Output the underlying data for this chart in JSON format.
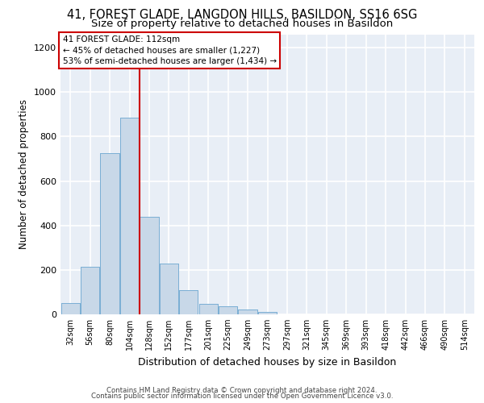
{
  "title1": "41, FOREST GLADE, LANGDON HILLS, BASILDON, SS16 6SG",
  "title2": "Size of property relative to detached houses in Basildon",
  "xlabel": "Distribution of detached houses by size in Basildon",
  "ylabel": "Number of detached properties",
  "footer1": "Contains HM Land Registry data © Crown copyright and database right 2024.",
  "footer2": "Contains public sector information licensed under the Open Government Licence v3.0.",
  "categories": [
    "32sqm",
    "56sqm",
    "80sqm",
    "104sqm",
    "128sqm",
    "152sqm",
    "177sqm",
    "201sqm",
    "225sqm",
    "249sqm",
    "273sqm",
    "297sqm",
    "321sqm",
    "345sqm",
    "369sqm",
    "393sqm",
    "418sqm",
    "442sqm",
    "466sqm",
    "490sqm",
    "514sqm"
  ],
  "values": [
    50,
    215,
    725,
    885,
    440,
    230,
    108,
    46,
    35,
    22,
    10,
    0,
    0,
    0,
    0,
    0,
    0,
    0,
    0,
    0,
    0
  ],
  "bar_color": "#c8d8e8",
  "bar_edge_color": "#7bafd4",
  "property_size": "112sqm",
  "annotation_line1": "41 FOREST GLADE: 112sqm",
  "annotation_line2": "← 45% of detached houses are smaller (1,227)",
  "annotation_line3": "53% of semi-detached houses are larger (1,434) →",
  "ylim": [
    0,
    1260
  ],
  "yticks": [
    0,
    200,
    400,
    600,
    800,
    1000,
    1200
  ],
  "background_color": "#e8eef6",
  "grid_color": "#ffffff",
  "title1_fontsize": 10.5,
  "title2_fontsize": 9.5,
  "annotation_box_color": "#ffffff",
  "annotation_border_color": "#cc0000",
  "red_line_color": "#cc0000",
  "red_line_x": 3.5
}
